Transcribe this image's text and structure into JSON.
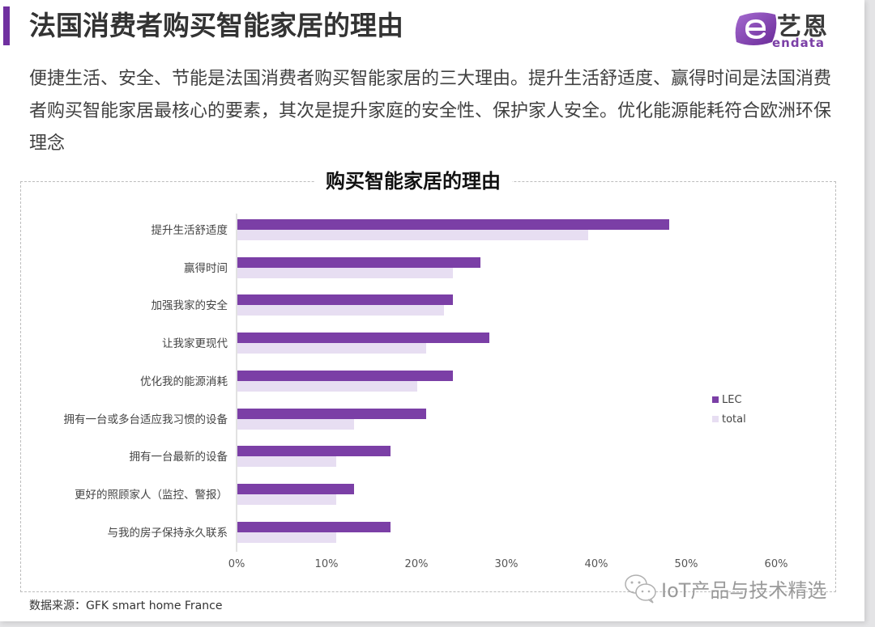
{
  "header": {
    "title": "法国消费者购买智能家居的理由",
    "accent_color": "#7030a0"
  },
  "logo": {
    "cn": "艺恩",
    "en": "endata",
    "icon": "endata-e-logo-icon"
  },
  "description": "便捷生活、安全、节能是法国消费者购买智能家居的三大理由。提升生活舒适度、赢得时间是法国消费者购买智能家居最核心的要素，其次是提升家庭的安全性、保护家人安全。优化能源能耗符合欧洲环保理念",
  "chart_data": {
    "type": "bar",
    "orientation": "horizontal",
    "title": "购买智能家居的理由",
    "categories": [
      "提升生活舒适度",
      "赢得时间",
      "加强我家的安全",
      "让我家更现代",
      "优化我的能源消耗",
      "拥有一台或多台适应我习惯的设备",
      "拥有一台最新的设备",
      "更好的照顾家人（监控、警报）",
      "与我的房子保持永久联系"
    ],
    "series": [
      {
        "name": "LEC",
        "color": "#7b3fa6",
        "values": [
          48,
          27,
          24,
          28,
          24,
          21,
          17,
          13,
          17
        ]
      },
      {
        "name": "total",
        "color": "#e7def2",
        "values": [
          39,
          24,
          23,
          21,
          20,
          13,
          11,
          11,
          11
        ]
      }
    ],
    "xlabel": "",
    "ylabel": "",
    "xlim": [
      0,
      60
    ],
    "xticks": [
      "0%",
      "10%",
      "20%",
      "30%",
      "40%",
      "50%",
      "60%"
    ],
    "grid": false,
    "legend_position": "right"
  },
  "legend": [
    {
      "label": "LEC",
      "color": "#7b3fa6"
    },
    {
      "label": "total",
      "color": "#e7def2"
    }
  ],
  "footer": {
    "source": "数据来源：GFK smart home France"
  },
  "watermark": {
    "text": "IoT产品与技术精选",
    "icon": "wechat-icon"
  }
}
